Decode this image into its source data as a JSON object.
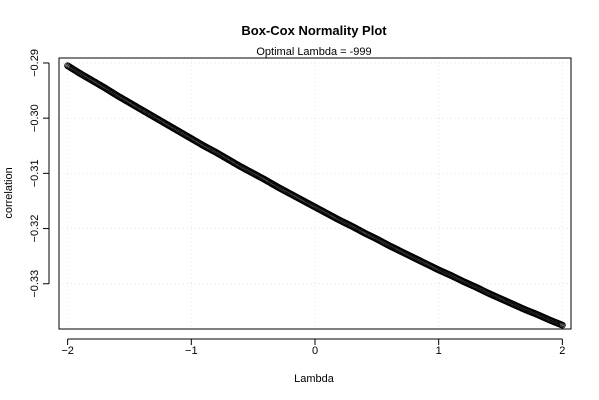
{
  "chart_data": {
    "type": "scatter",
    "title": "Box-Cox Normality Plot",
    "subtitle": "Optimal Lambda = -999",
    "xlabel": "Lambda",
    "ylabel": "correlation",
    "xlim": [
      -2.07,
      2.07
    ],
    "ylim": [
      -0.3382,
      -0.2891
    ],
    "x_ticks": [
      -2,
      -1,
      0,
      1,
      2
    ],
    "x_tick_labels": [
      "−2",
      "−1",
      "0",
      "1",
      "2"
    ],
    "y_ticks": [
      -0.29,
      -0.3,
      -0.31,
      -0.32,
      -0.33
    ],
    "y_tick_labels": [
      "−0.29",
      "−0.30",
      "−0.31",
      "−0.32",
      "−0.33"
    ],
    "grid": true,
    "point_color": "#000000",
    "grid_color": "#e6e6e6",
    "series": [
      {
        "x": [
          -2.0,
          -1.9,
          -1.8,
          -1.7,
          -1.6,
          -1.5,
          -1.4,
          -1.3,
          -1.2,
          -1.1,
          -1.0,
          -0.9,
          -0.8,
          -0.7,
          -0.6,
          -0.5,
          -0.4,
          -0.3,
          -0.2,
          -0.1,
          0.0,
          0.1,
          0.2,
          0.3,
          0.4,
          0.5,
          0.6,
          0.7,
          0.8,
          0.9,
          1.0,
          1.1,
          1.2,
          1.3,
          1.4,
          1.5,
          1.6,
          1.7,
          1.8,
          1.9,
          2.0
        ],
        "y": [
          -0.2905,
          -0.2919,
          -0.2932,
          -0.2945,
          -0.2959,
          -0.2972,
          -0.2985,
          -0.2998,
          -0.3011,
          -0.3024,
          -0.3037,
          -0.305,
          -0.3062,
          -0.3075,
          -0.3088,
          -0.31,
          -0.3112,
          -0.3125,
          -0.3137,
          -0.3149,
          -0.3161,
          -0.3173,
          -0.3185,
          -0.3196,
          -0.3208,
          -0.3219,
          -0.3231,
          -0.3242,
          -0.3253,
          -0.3264,
          -0.3275,
          -0.3285,
          -0.3296,
          -0.3306,
          -0.3317,
          -0.3327,
          -0.3337,
          -0.3347,
          -0.3356,
          -0.3366,
          -0.3375
        ]
      }
    ]
  }
}
